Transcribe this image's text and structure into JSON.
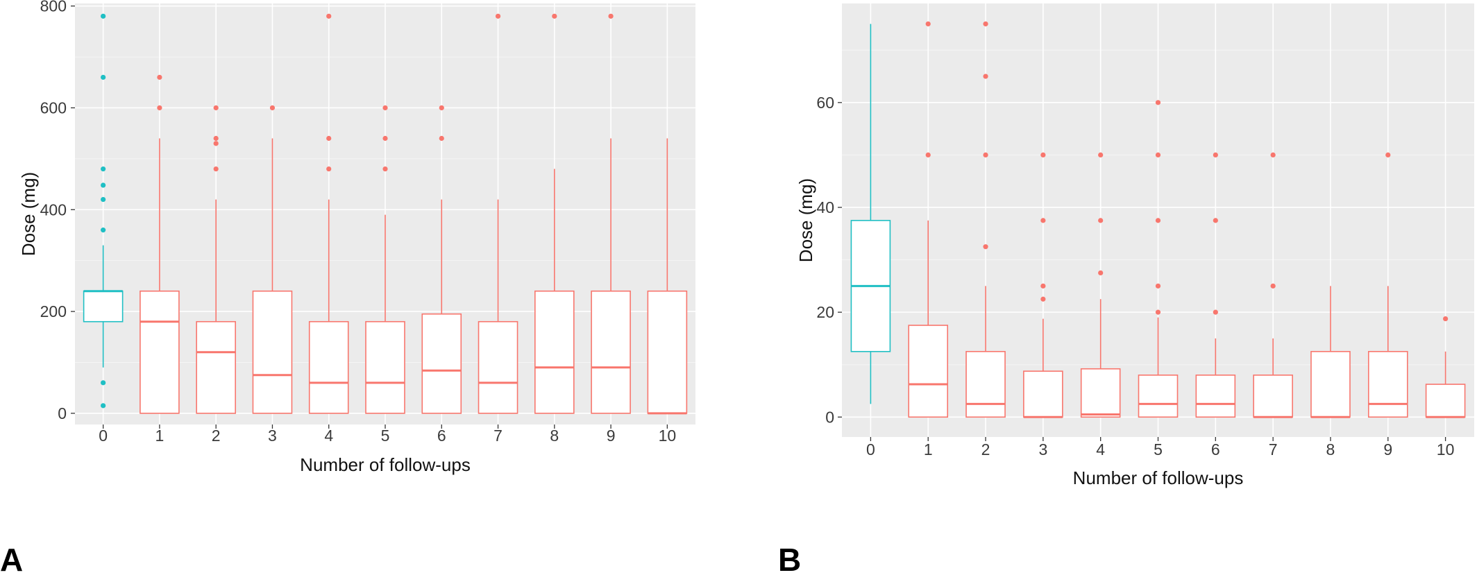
{
  "colors": {
    "panel_bg": "#EBEBEB",
    "grid_major": "#FFFFFF",
    "group0": "#1FBFC4",
    "others": "#F8766D"
  },
  "chart_data": [
    {
      "panel_label": "A",
      "type": "boxplot",
      "xlabel": "Number of follow-ups",
      "ylabel": "Dose (mg)",
      "categories": [
        "0",
        "1",
        "2",
        "3",
        "4",
        "5",
        "6",
        "7",
        "8",
        "9",
        "10"
      ],
      "ylim": [
        -22,
        805
      ],
      "yticks": [
        0,
        200,
        400,
        600,
        800
      ],
      "series": [
        {
          "x": "0",
          "q1": 180,
          "median": 240,
          "q3": 240,
          "whisker_low": 90,
          "whisker_high": 330,
          "outliers": [
            15,
            60,
            360,
            420,
            448,
            480,
            660,
            780
          ],
          "color": "group0"
        },
        {
          "x": "1",
          "q1": 0,
          "median": 180,
          "q3": 240,
          "whisker_low": 0,
          "whisker_high": 540,
          "outliers": [
            600,
            660
          ],
          "color": "others"
        },
        {
          "x": "2",
          "q1": 0,
          "median": 120,
          "q3": 180,
          "whisker_low": 0,
          "whisker_high": 420,
          "outliers": [
            480,
            530,
            540,
            600
          ],
          "color": "others"
        },
        {
          "x": "3",
          "q1": 0,
          "median": 75,
          "q3": 240,
          "whisker_low": 0,
          "whisker_high": 540,
          "outliers": [
            600
          ],
          "color": "others"
        },
        {
          "x": "4",
          "q1": 0,
          "median": 60,
          "q3": 180,
          "whisker_low": 0,
          "whisker_high": 420,
          "outliers": [
            480,
            540,
            780
          ],
          "color": "others"
        },
        {
          "x": "5",
          "q1": 0,
          "median": 60,
          "q3": 180,
          "whisker_low": 0,
          "whisker_high": 390,
          "outliers": [
            480,
            540,
            600
          ],
          "color": "others"
        },
        {
          "x": "6",
          "q1": 0,
          "median": 84,
          "q3": 195,
          "whisker_low": 0,
          "whisker_high": 420,
          "outliers": [
            540,
            600
          ],
          "color": "others"
        },
        {
          "x": "7",
          "q1": 0,
          "median": 60,
          "q3": 180,
          "whisker_low": 0,
          "whisker_high": 420,
          "outliers": [
            780
          ],
          "color": "others"
        },
        {
          "x": "8",
          "q1": 0,
          "median": 90,
          "q3": 240,
          "whisker_low": 0,
          "whisker_high": 480,
          "outliers": [
            780
          ],
          "color": "others"
        },
        {
          "x": "9",
          "q1": 0,
          "median": 90,
          "q3": 240,
          "whisker_low": 0,
          "whisker_high": 540,
          "outliers": [
            780
          ],
          "color": "others"
        },
        {
          "x": "10",
          "q1": 0,
          "median": 0,
          "q3": 240,
          "whisker_low": 0,
          "whisker_high": 540,
          "outliers": [],
          "color": "others"
        }
      ]
    },
    {
      "panel_label": "B",
      "type": "boxplot",
      "xlabel": "Number of follow-ups",
      "ylabel": "Dose (mg)",
      "categories": [
        "0",
        "1",
        "2",
        "3",
        "4",
        "5",
        "6",
        "7",
        "8",
        "9",
        "10"
      ],
      "ylim": [
        -3.8,
        78.9
      ],
      "yticks": [
        0,
        20,
        40,
        60
      ],
      "series": [
        {
          "x": "0",
          "q1": 12.5,
          "median": 25,
          "q3": 37.5,
          "whisker_low": 2.5,
          "whisker_high": 75,
          "outliers": [],
          "color": "group0"
        },
        {
          "x": "1",
          "q1": 0,
          "median": 6.25,
          "q3": 17.5,
          "whisker_low": 0,
          "whisker_high": 37.5,
          "outliers": [
            50,
            75
          ],
          "color": "others"
        },
        {
          "x": "2",
          "q1": 0,
          "median": 2.5,
          "q3": 12.5,
          "whisker_low": 0,
          "whisker_high": 25,
          "outliers": [
            32.5,
            50,
            65,
            75
          ],
          "color": "others"
        },
        {
          "x": "3",
          "q1": 0,
          "median": 0,
          "q3": 8.75,
          "whisker_low": 0,
          "whisker_high": 18.75,
          "outliers": [
            22.5,
            25,
            37.5,
            50
          ],
          "color": "others"
        },
        {
          "x": "4",
          "q1": 0,
          "median": 0.5,
          "q3": 9.2,
          "whisker_low": 0,
          "whisker_high": 22.5,
          "outliers": [
            27.5,
            37.5,
            50
          ],
          "color": "others"
        },
        {
          "x": "5",
          "q1": 0,
          "median": 2.5,
          "q3": 8,
          "whisker_low": 0,
          "whisker_high": 19,
          "outliers": [
            20,
            25,
            37.5,
            50,
            60
          ],
          "color": "others"
        },
        {
          "x": "6",
          "q1": 0,
          "median": 2.5,
          "q3": 8,
          "whisker_low": 0,
          "whisker_high": 15,
          "outliers": [
            20,
            37.5,
            50
          ],
          "color": "others"
        },
        {
          "x": "7",
          "q1": 0,
          "median": 0,
          "q3": 8,
          "whisker_low": 0,
          "whisker_high": 15,
          "outliers": [
            25,
            50
          ],
          "color": "others"
        },
        {
          "x": "8",
          "q1": 0,
          "median": 0,
          "q3": 12.5,
          "whisker_low": 0,
          "whisker_high": 25,
          "outliers": [],
          "color": "others"
        },
        {
          "x": "9",
          "q1": 0,
          "median": 2.5,
          "q3": 12.5,
          "whisker_low": 0,
          "whisker_high": 25,
          "outliers": [
            50
          ],
          "color": "others"
        },
        {
          "x": "10",
          "q1": 0,
          "median": 0,
          "q3": 6.25,
          "whisker_low": 0,
          "whisker_high": 12.5,
          "outliers": [
            18.75
          ],
          "color": "others"
        }
      ]
    }
  ]
}
